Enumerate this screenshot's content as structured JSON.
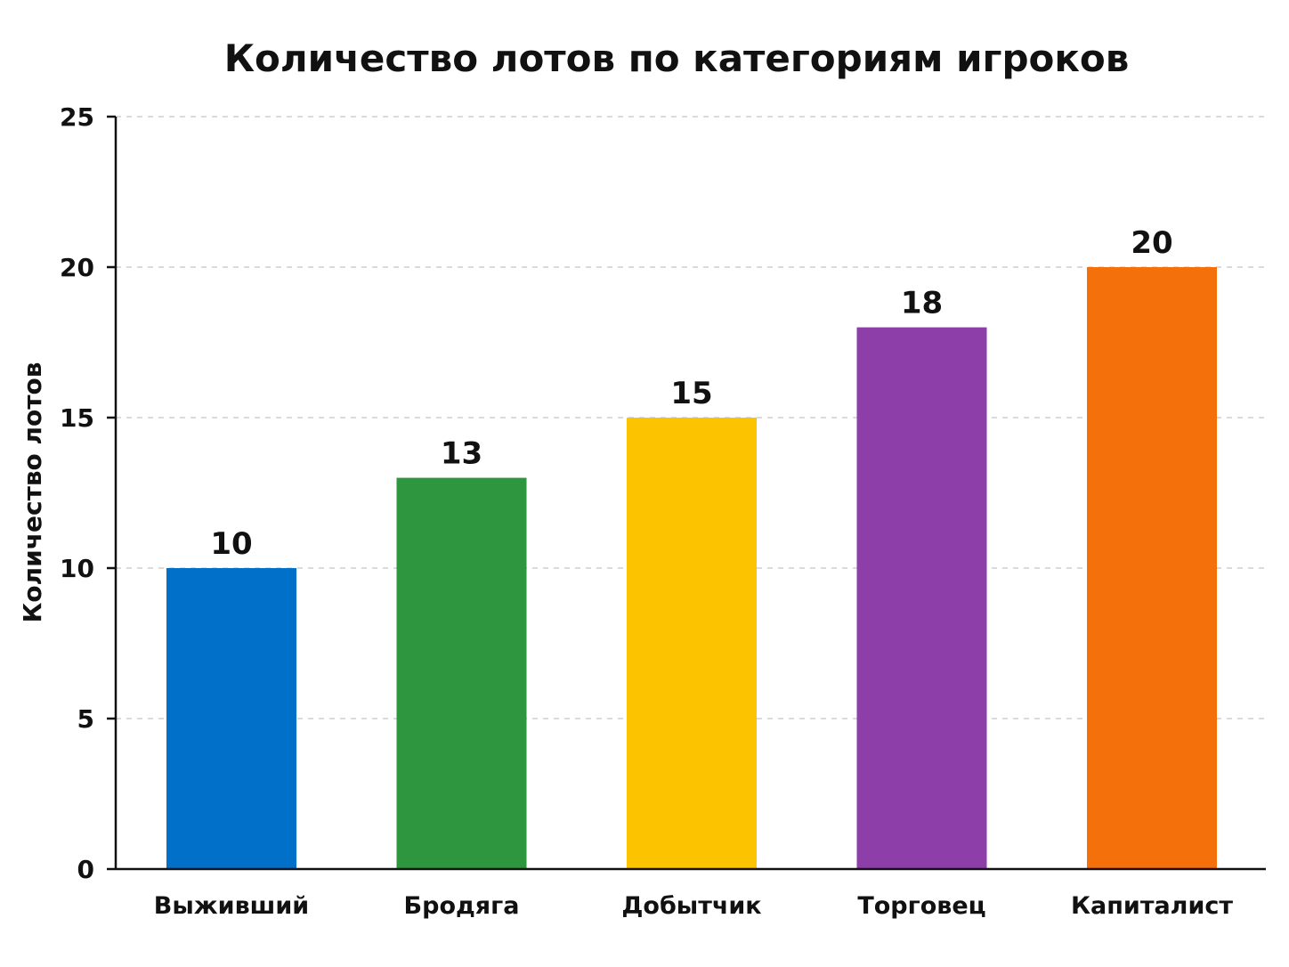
{
  "chart_data": {
    "type": "bar",
    "title": "Количество лотов по категориям игроков",
    "xlabel": "",
    "ylabel": "Количество лотов",
    "categories": [
      "Выживший",
      "Бродяга",
      "Добытчик",
      "Торговец",
      "Капиталист"
    ],
    "values": [
      10,
      13,
      15,
      18,
      20
    ],
    "colors": [
      "#0070c8",
      "#2e963e",
      "#fcc400",
      "#8e3ea9",
      "#f4700a"
    ],
    "ylim": [
      0,
      25
    ],
    "yticks": [
      0,
      5,
      10,
      15,
      20,
      25
    ],
    "grid": true,
    "data_labels": true
  }
}
